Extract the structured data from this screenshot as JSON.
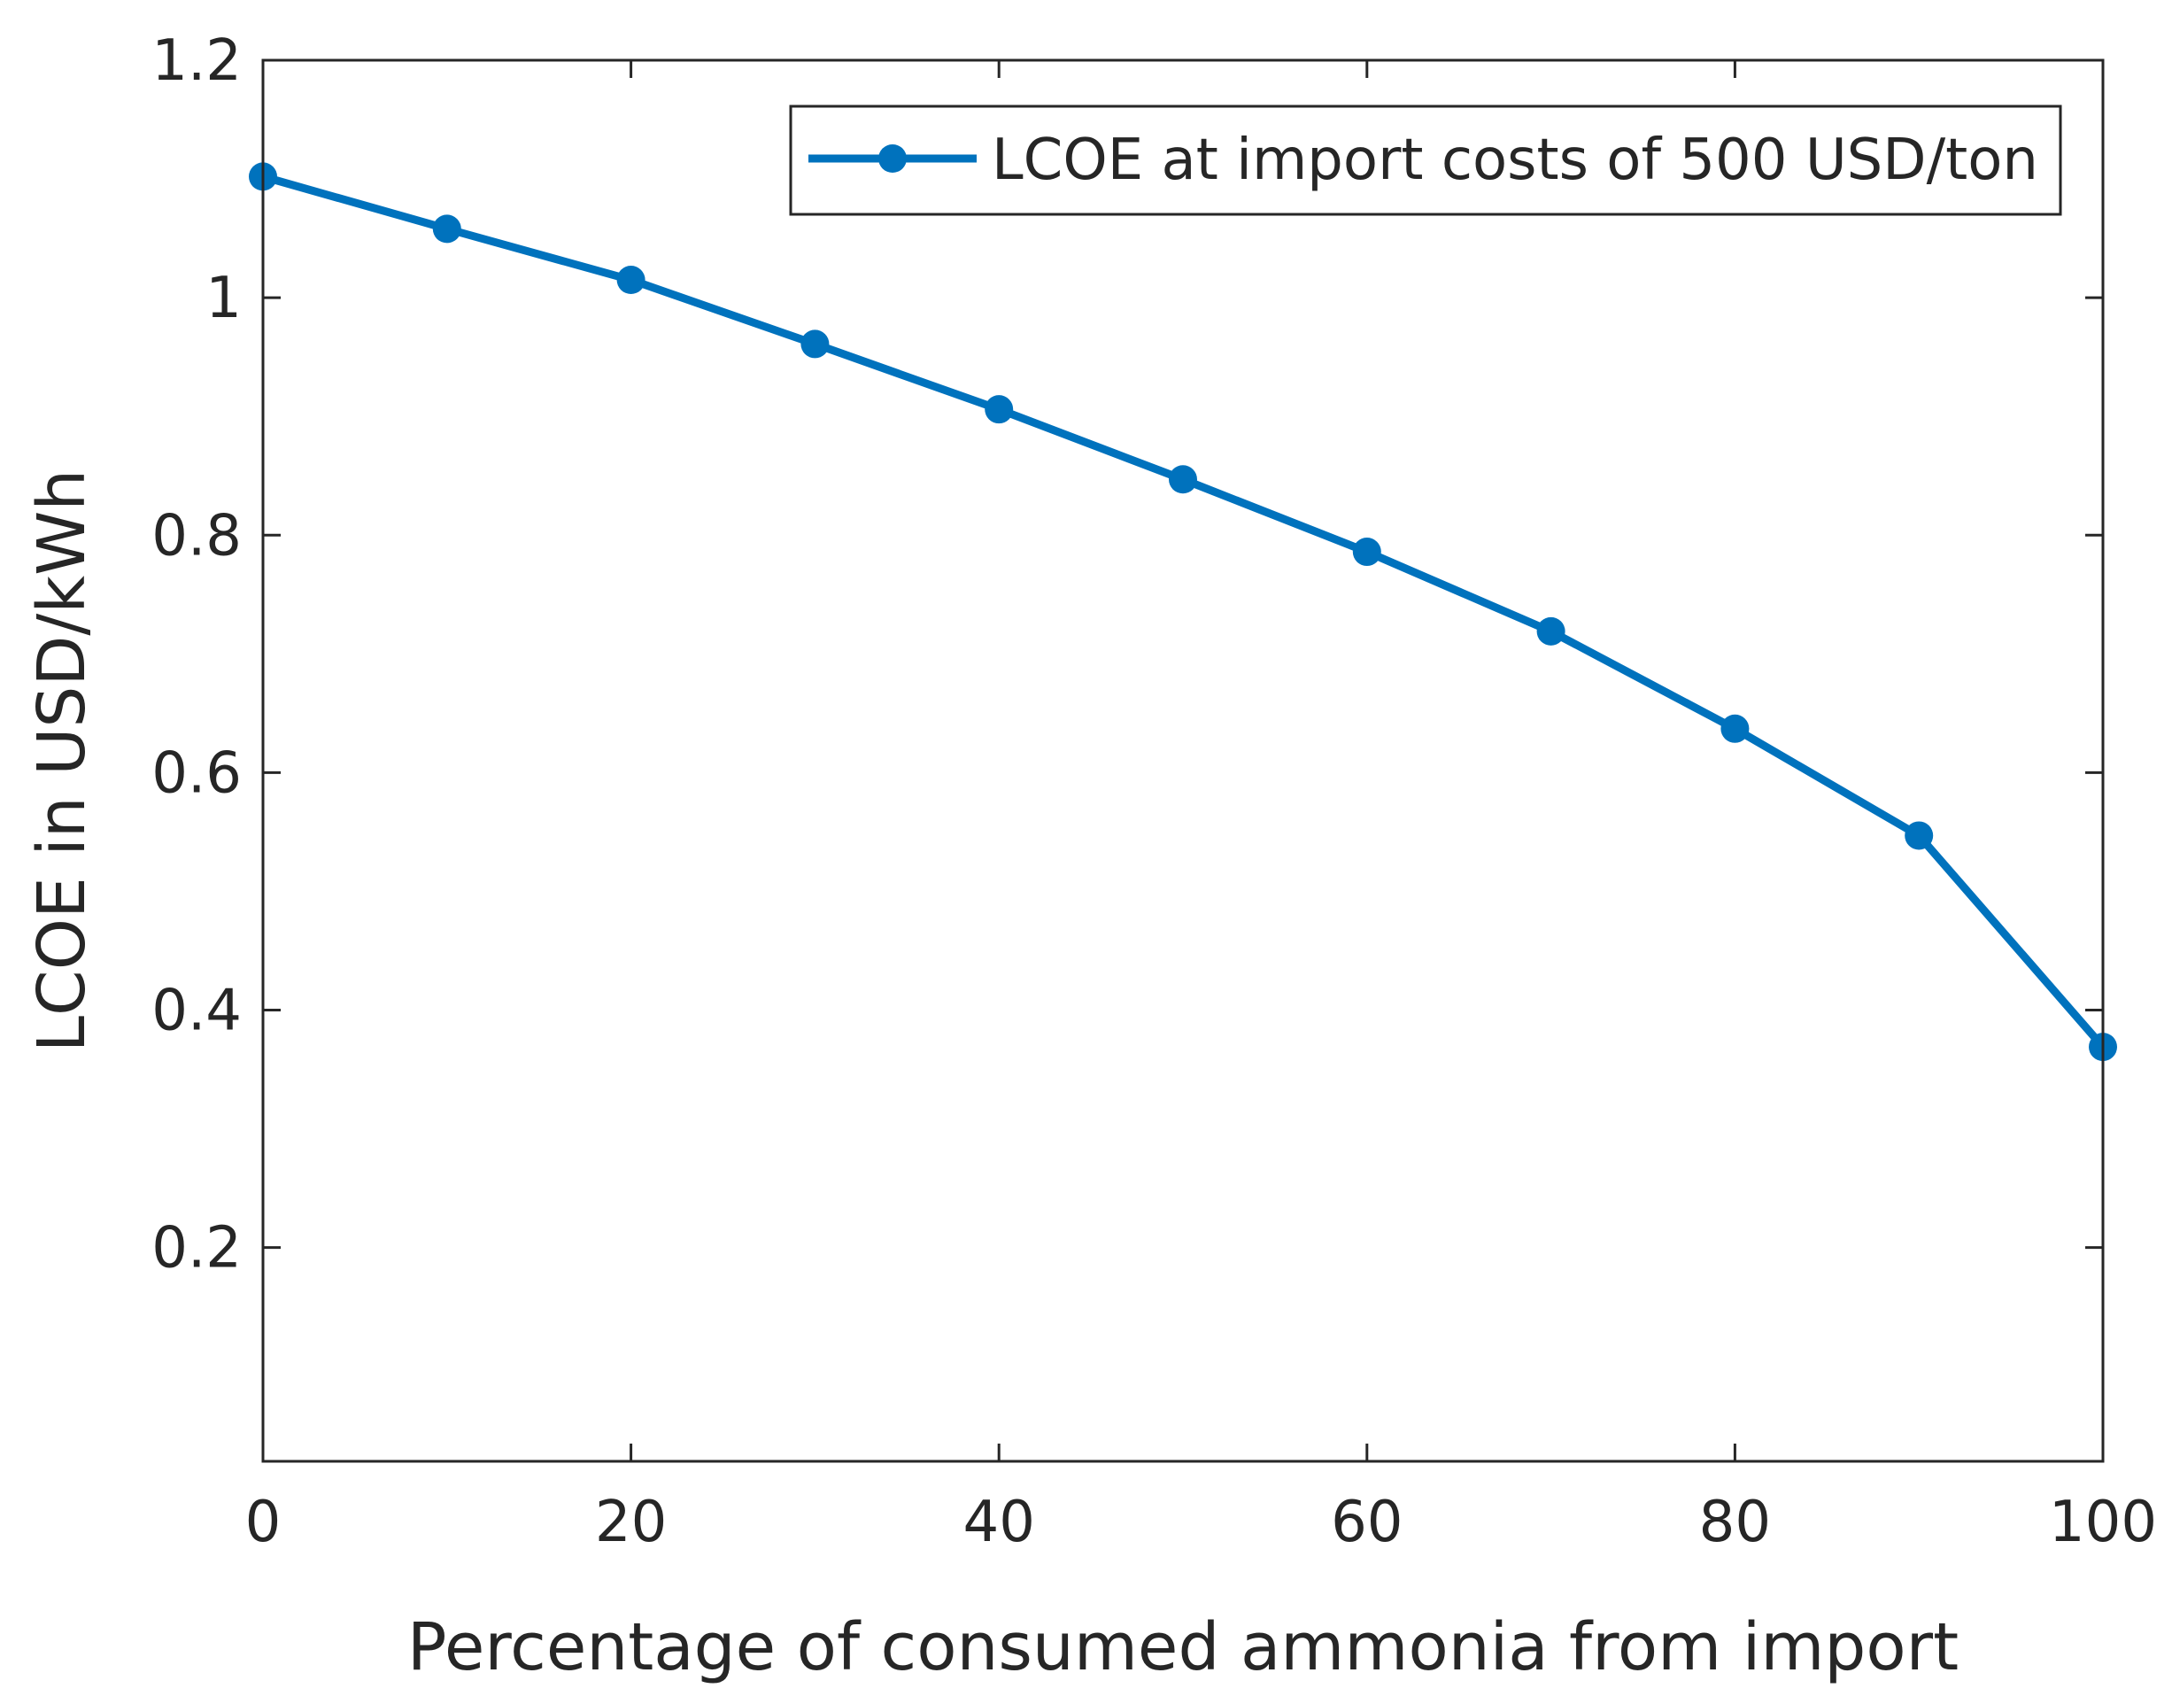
{
  "chart_data": {
    "type": "line",
    "title": "",
    "xlabel": "Percentage of consumed ammonia from import",
    "ylabel": "LCOE in USD/kWh",
    "xlim": [
      0,
      100
    ],
    "ylim": [
      0.02,
      1.2
    ],
    "x_ticks": [
      0,
      20,
      40,
      60,
      80,
      100
    ],
    "x_tick_labels": [
      "0",
      "20",
      "40",
      "60",
      "80",
      "100"
    ],
    "y_ticks": [
      0.2,
      0.4,
      0.6,
      0.8,
      1.0,
      1.2
    ],
    "y_tick_labels": [
      "0.2",
      "0.4",
      "0.6",
      "0.8",
      "1",
      "1.2"
    ],
    "grid": false,
    "legend_position": "top-right",
    "series": [
      {
        "name": "LCOE at import costs of 500 USD/ton",
        "color": "#0072bd",
        "marker": "circle",
        "x": [
          0,
          10,
          20,
          30,
          40,
          50,
          60,
          70,
          80,
          90,
          100
        ],
        "values": [
          1.102,
          1.058,
          1.015,
          0.961,
          0.906,
          0.847,
          0.786,
          0.719,
          0.637,
          0.547,
          0.369
        ]
      }
    ]
  }
}
